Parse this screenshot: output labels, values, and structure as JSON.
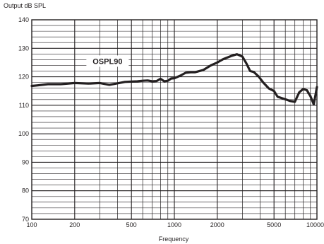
{
  "chart_data": {
    "type": "line",
    "title": "",
    "ylabel": "Output dB SPL",
    "xlabel": "Frequency",
    "xscale": "log",
    "xlim": [
      100,
      10000
    ],
    "ylim": [
      70,
      140
    ],
    "grid": true,
    "x_tick_labels": [
      "100",
      "200",
      "500",
      "1000",
      "2000",
      "5000",
      "10000"
    ],
    "x_tick_values": [
      100,
      200,
      500,
      1000,
      2000,
      5000,
      10000
    ],
    "y_tick_labels": [
      "70",
      "80",
      "90",
      "100",
      "110",
      "120",
      "130",
      "140"
    ],
    "y_tick_values": [
      70,
      80,
      90,
      100,
      110,
      120,
      130,
      140
    ],
    "annotations": [
      {
        "text": "OSPL90"
      }
    ],
    "series": [
      {
        "name": "OSPL90",
        "color": "#231f20",
        "x": [
          100,
          110,
          130,
          160,
          200,
          250,
          300,
          350,
          400,
          450,
          500,
          550,
          600,
          650,
          700,
          750,
          800,
          850,
          900,
          950,
          1000,
          1100,
          1200,
          1300,
          1400,
          1600,
          1800,
          2000,
          2200,
          2500,
          2750,
          3000,
          3200,
          3400,
          3600,
          3900,
          4200,
          4600,
          5000,
          5300,
          5600,
          6000,
          6500,
          7000,
          7500,
          8000,
          8500,
          9000,
          9500,
          10000
        ],
        "y": [
          116.8,
          117.0,
          117.4,
          117.4,
          117.8,
          117.6,
          117.8,
          117.2,
          117.7,
          118.2,
          118.3,
          118.4,
          118.6,
          118.7,
          118.4,
          118.5,
          119.3,
          118.4,
          118.6,
          119.4,
          119.5,
          120.4,
          121.4,
          121.6,
          121.6,
          122.4,
          124.0,
          125.0,
          126.2,
          127.3,
          127.9,
          127.1,
          124.7,
          122.0,
          121.7,
          120.1,
          118.0,
          115.9,
          115.0,
          113.0,
          112.6,
          112.1,
          111.5,
          111.2,
          114.5,
          115.7,
          115.3,
          113.2,
          110.3,
          116.4
        ]
      }
    ]
  }
}
